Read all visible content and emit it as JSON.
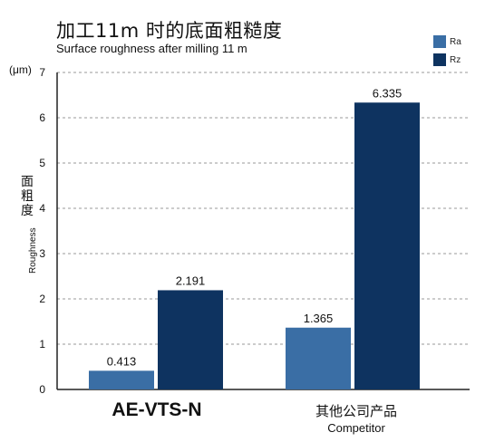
{
  "title_cn": "加工11m 时的底面粗糙度",
  "title_en": "Surface roughness after milling 11 m",
  "y_unit": "(μm)",
  "y_title_cn": "面粗度",
  "y_title_en": "Roughness",
  "colors": {
    "Ra": "#3a6ea5",
    "Rz": "#0e3360",
    "grid": "#999999",
    "axis": "#222222"
  },
  "category_labels": [
    {
      "main": "AE-VTS-N"
    },
    {
      "cn": "其他公司产品",
      "en": "Competitor"
    }
  ],
  "chart_data": {
    "type": "bar",
    "title": "加工11m 时的底面粗糙度",
    "subtitle": "Surface roughness after milling 11 m",
    "categories": [
      "AE-VTS-N",
      "其他公司产品 Competitor"
    ],
    "series": [
      {
        "name": "Ra",
        "values": [
          0.413,
          1.365
        ]
      },
      {
        "name": "Rz",
        "values": [
          2.191,
          6.335
        ]
      }
    ],
    "ylabel": "面粗度 Roughness (μm)",
    "ylim": [
      0,
      7
    ],
    "yticks": [
      0,
      1,
      2,
      3,
      4,
      5,
      6,
      7
    ],
    "grid": true,
    "legend": "top-right"
  }
}
